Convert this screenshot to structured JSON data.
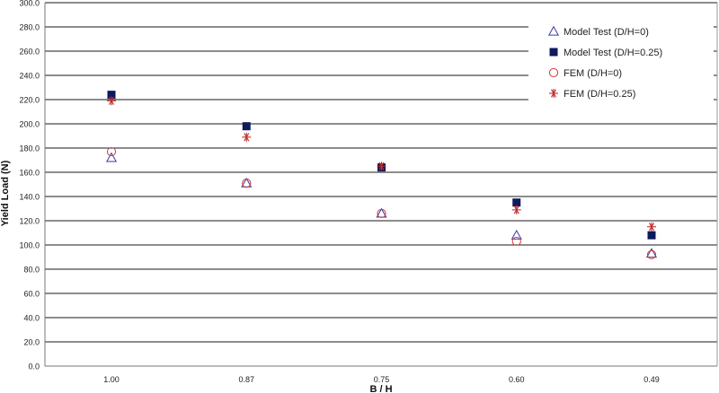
{
  "chart_data": {
    "type": "scatter",
    "title": "",
    "xlabel": "B  /  H",
    "ylabel": "Yield   Load (N)",
    "categories": [
      "1.00",
      "0.87",
      "0.75",
      "0.60",
      "0.49"
    ],
    "ylim": [
      0,
      300
    ],
    "ystep": 20,
    "ytick_labels": [
      "0.0",
      "20.0",
      "40.0",
      "60.0",
      "80.0",
      "100.0",
      "120.0",
      "140.0",
      "160.0",
      "180.0",
      "200.0",
      "220.0",
      "240.0",
      "260.0",
      "280.0",
      "300.0"
    ],
    "grid": "horizontal",
    "legend_position": "top-right",
    "series": [
      {
        "name": "Model Test  (D/H=0)",
        "marker": "triangle-open",
        "color": "#3a3aa0",
        "values": [
          172,
          151,
          126,
          108,
          93
        ]
      },
      {
        "name": "Model Test  (D/H=0.25)",
        "marker": "square-filled",
        "color": "#0d1a5c",
        "values": [
          224,
          198,
          164,
          135,
          108
        ]
      },
      {
        "name": "FEM  (D/H=0)",
        "marker": "circle-open",
        "color": "#d43a3a",
        "values": [
          177,
          151,
          126,
          103,
          92
        ]
      },
      {
        "name": "FEM  (D/H=0.25)",
        "marker": "asterisk",
        "color": "#c42a2a",
        "values": [
          219,
          189,
          165,
          129,
          115
        ]
      }
    ]
  }
}
